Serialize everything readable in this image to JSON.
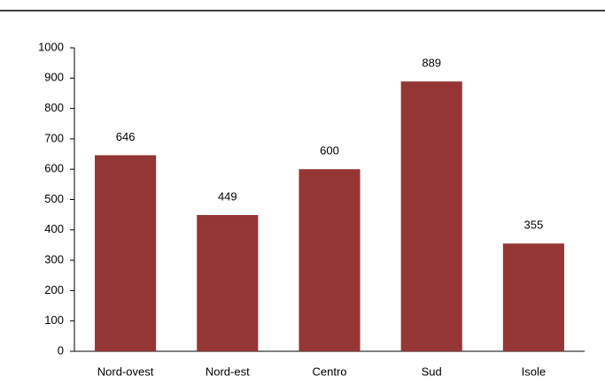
{
  "chart_data": {
    "type": "bar",
    "categories": [
      "Nord-ovest",
      "Nord-est",
      "Centro",
      "Sud",
      "Isole"
    ],
    "values": [
      646,
      449,
      600,
      889,
      355
    ],
    "color": "#943634",
    "ylim": [
      0,
      1000
    ],
    "yticks": [
      0,
      100,
      200,
      300,
      400,
      500,
      600,
      700,
      800,
      900,
      1000
    ],
    "grid": false
  }
}
